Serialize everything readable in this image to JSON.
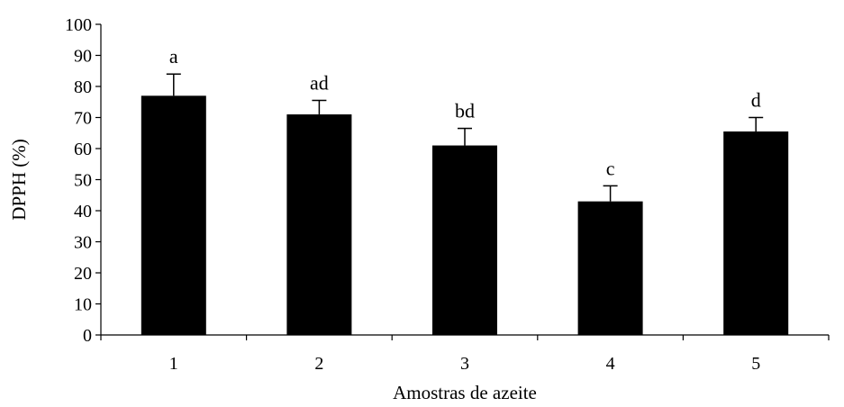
{
  "chart_data": {
    "type": "bar",
    "categories": [
      "1",
      "2",
      "3",
      "4",
      "5"
    ],
    "series": [
      {
        "values": [
          77,
          71,
          61,
          43,
          65.5
        ],
        "error_plus": [
          7,
          4.5,
          5.5,
          5,
          4.5
        ],
        "significance_labels": [
          "a",
          "ad",
          "bd",
          "c",
          "d"
        ],
        "color": "#000000"
      }
    ],
    "title": "",
    "xlabel": "Amostras de azeite",
    "ylabel": "DPPH (%)",
    "ylim": [
      0,
      100
    ],
    "yticks": [
      "0",
      "10",
      "20",
      "30",
      "40",
      "50",
      "60",
      "70",
      "80",
      "90",
      "100"
    ],
    "grid": false,
    "legend": false
  }
}
